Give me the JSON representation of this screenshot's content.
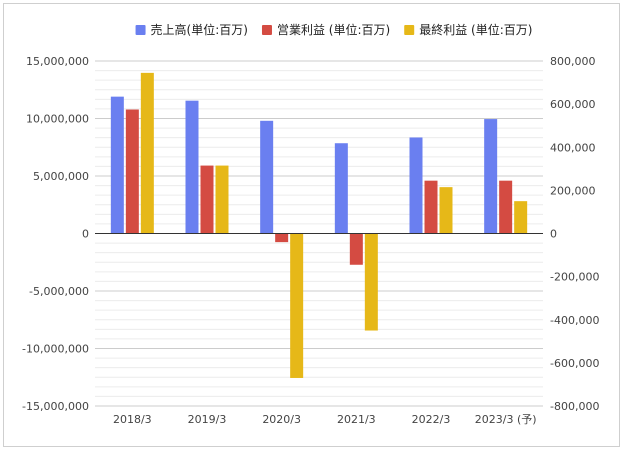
{
  "chart_data": {
    "type": "bar",
    "categories": [
      "2018/3",
      "2019/3",
      "2020/3",
      "2021/3",
      "2022/3",
      "2023/3 (予)"
    ],
    "series": [
      {
        "name": "売上高(単位:百万)",
        "axis": "left",
        "color": "#6a7ff0",
        "values": [
          11900000,
          11550000,
          9800000,
          7850000,
          8350000,
          9950000
        ]
      },
      {
        "name": "営業利益 (単位:百万)",
        "axis": "right",
        "color": "#d44b42",
        "values": [
          575000,
          315000,
          -40000,
          -145000,
          245000,
          245000
        ]
      },
      {
        "name": "最終利益 (単位:百万)",
        "axis": "right",
        "color": "#e6b818",
        "values": [
          745000,
          315000,
          -670000,
          -450000,
          215000,
          150000
        ]
      }
    ],
    "ylim_left": [
      -15000000,
      15000000
    ],
    "ylim_right": [
      -800000,
      800000
    ],
    "yticks_left": [
      "15,000,000",
      "10,000,000",
      "5,000,000",
      "0",
      "-5,000,000",
      "-10,000,000",
      "-15,000,000"
    ],
    "yticks_right": [
      "800,000",
      "600,000",
      "400,000",
      "200,000",
      "0",
      "-200,000",
      "-400,000",
      "-600,000",
      "-800,000"
    ],
    "legend_position": "top",
    "grid": true
  }
}
